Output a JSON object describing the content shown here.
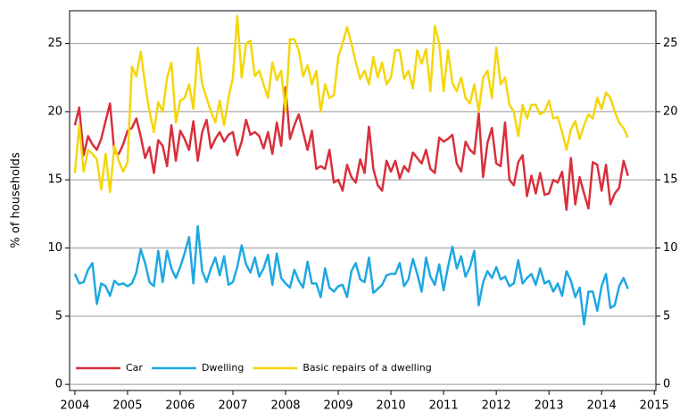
{
  "chart_data": {
    "type": "line",
    "y_label": "% of households",
    "xlim": [
      2003.9,
      2015.03
    ],
    "xticks": [
      2004,
      2005,
      2006,
      2007,
      2008,
      2009,
      2010,
      2011,
      2012,
      2013,
      2014,
      2015
    ],
    "ylim": [
      -0.45,
      27.4
    ],
    "yticks": [
      0,
      5,
      10,
      15,
      20,
      25
    ],
    "grid": true,
    "legend": "lower left",
    "x": [
      2004,
      2004.083,
      2004.167,
      2004.25,
      2004.333,
      2004.417,
      2004.5,
      2004.583,
      2004.667,
      2004.75,
      2004.833,
      2004.917,
      2005,
      2005.083,
      2005.167,
      2005.25,
      2005.333,
      2005.417,
      2005.5,
      2005.583,
      2005.667,
      2005.75,
      2005.833,
      2005.917,
      2006,
      2006.083,
      2006.167,
      2006.25,
      2006.333,
      2006.417,
      2006.5,
      2006.583,
      2006.667,
      2006.75,
      2006.833,
      2006.917,
      2007,
      2007.083,
      2007.167,
      2007.25,
      2007.333,
      2007.417,
      2007.5,
      2007.583,
      2007.667,
      2007.75,
      2007.833,
      2007.917,
      2008,
      2008.083,
      2008.167,
      2008.25,
      2008.333,
      2008.417,
      2008.5,
      2008.583,
      2008.667,
      2008.75,
      2008.833,
      2008.917,
      2009,
      2009.083,
      2009.167,
      2009.25,
      2009.333,
      2009.417,
      2009.5,
      2009.583,
      2009.667,
      2009.75,
      2009.833,
      2009.917,
      2010,
      2010.083,
      2010.167,
      2010.25,
      2010.333,
      2010.417,
      2010.5,
      2010.583,
      2010.667,
      2010.75,
      2010.833,
      2010.917,
      2011,
      2011.083,
      2011.167,
      2011.25,
      2011.333,
      2011.417,
      2011.5,
      2011.583,
      2011.667,
      2011.75,
      2011.833,
      2011.917,
      2012,
      2012.083,
      2012.167,
      2012.25,
      2012.333,
      2012.417,
      2012.5,
      2012.583,
      2012.667,
      2012.75,
      2012.833,
      2012.917,
      2013,
      2013.083,
      2013.167,
      2013.25,
      2013.333,
      2013.417,
      2013.5,
      2013.583,
      2013.667,
      2013.75,
      2013.833,
      2013.917,
      2014,
      2014.083,
      2014.167,
      2014.25,
      2014.333,
      2014.417,
      2014.5
    ],
    "series": [
      {
        "name": "Car",
        "color": "#d8303c",
        "values": [
          19.0,
          20.3,
          16.8,
          18.2,
          17.6,
          17.2,
          18.0,
          19.3,
          20.6,
          17.0,
          16.9,
          17.6,
          18.6,
          18.8,
          19.5,
          18.2,
          16.6,
          17.4,
          15.5,
          17.9,
          17.5,
          16.0,
          19.0,
          16.4,
          18.6,
          18.0,
          17.2,
          19.3,
          16.4,
          18.5,
          19.4,
          17.3,
          18.0,
          18.5,
          17.8,
          18.3,
          18.5,
          16.8,
          17.8,
          19.4,
          18.3,
          18.5,
          18.2,
          17.3,
          18.5,
          16.9,
          19.2,
          17.5,
          21.8,
          18.0,
          19.0,
          19.8,
          18.5,
          17.2,
          18.6,
          15.8,
          16.0,
          15.8,
          17.2,
          14.8,
          15.0,
          14.2,
          16.1,
          15.2,
          14.8,
          16.5,
          15.5,
          18.9,
          15.8,
          14.6,
          14.2,
          16.4,
          15.6,
          16.4,
          15.1,
          16.0,
          15.6,
          17.0,
          16.6,
          16.2,
          17.2,
          15.8,
          15.5,
          18.1,
          17.8,
          18.0,
          18.3,
          16.2,
          15.6,
          17.8,
          17.2,
          16.9,
          19.9,
          15.2,
          17.7,
          18.8,
          16.2,
          16.0,
          19.2,
          15.0,
          14.6,
          16.3,
          16.8,
          13.8,
          15.3,
          14.0,
          15.5,
          13.9,
          14.0,
          15.0,
          14.8,
          15.6,
          12.8,
          16.6,
          13.2,
          15.2,
          14.0,
          12.9,
          16.3,
          16.1,
          14.2,
          16.1,
          13.2,
          14.0,
          14.4,
          16.4,
          15.3
        ]
      },
      {
        "name": "Dwelling",
        "color": "#1ea8e2",
        "values": [
          8.1,
          7.4,
          7.5,
          8.4,
          8.9,
          5.9,
          7.4,
          7.2,
          6.5,
          7.6,
          7.3,
          7.4,
          7.2,
          7.4,
          8.2,
          9.9,
          8.9,
          7.5,
          7.2,
          9.8,
          7.5,
          9.8,
          8.5,
          7.8,
          8.6,
          9.6,
          10.8,
          7.4,
          11.6,
          8.3,
          7.5,
          8.5,
          9.3,
          8.0,
          9.4,
          7.3,
          7.5,
          8.6,
          10.2,
          8.8,
          8.2,
          9.3,
          7.9,
          8.5,
          9.5,
          7.3,
          9.6,
          7.8,
          7.4,
          7.1,
          8.4,
          7.6,
          7.1,
          9.0,
          7.4,
          7.4,
          6.4,
          8.5,
          7.1,
          6.8,
          7.2,
          7.3,
          6.4,
          8.3,
          8.9,
          7.7,
          7.5,
          9.3,
          6.7,
          7.0,
          7.3,
          8.0,
          8.1,
          8.1,
          8.9,
          7.2,
          7.7,
          9.2,
          8.1,
          6.8,
          9.3,
          7.9,
          7.3,
          8.8,
          6.9,
          8.6,
          10.1,
          8.5,
          9.4,
          7.9,
          8.6,
          9.8,
          5.8,
          7.5,
          8.3,
          7.8,
          8.6,
          7.7,
          7.9,
          7.2,
          7.4,
          9.1,
          7.4,
          7.8,
          8.1,
          7.3,
          8.5,
          7.4,
          7.6,
          6.8,
          7.4,
          6.5,
          8.3,
          7.6,
          6.4,
          7.1,
          4.4,
          6.8,
          6.8,
          5.4,
          7.2,
          8.1,
          5.6,
          5.8,
          7.2,
          7.8,
          7.0
        ]
      },
      {
        "name": "Basic repairs of a dwelling",
        "color": "#f5d60c",
        "values": [
          15.5,
          19.0,
          15.6,
          17.2,
          16.9,
          16.5,
          14.3,
          16.9,
          14.1,
          17.5,
          16.4,
          15.6,
          16.3,
          23.3,
          22.6,
          24.4,
          22.0,
          20.0,
          18.5,
          20.7,
          20.0,
          22.5,
          23.6,
          19.2,
          20.8,
          21.0,
          22.0,
          20.2,
          24.7,
          22.0,
          21.0,
          20.0,
          19.2,
          20.8,
          19.0,
          21.0,
          22.5,
          27.0,
          22.5,
          25.0,
          25.2,
          22.6,
          23.0,
          22.0,
          21.0,
          23.6,
          22.3,
          23.0,
          20.0,
          25.3,
          25.3,
          24.5,
          22.6,
          23.4,
          22.0,
          23.0,
          20.0,
          22.0,
          21.0,
          21.2,
          24.0,
          25.0,
          26.2,
          25.0,
          23.6,
          22.4,
          23.0,
          22.0,
          24.0,
          22.5,
          23.6,
          22.0,
          22.5,
          24.5,
          24.5,
          22.4,
          23.0,
          21.7,
          24.5,
          23.5,
          24.6,
          21.5,
          26.3,
          25.0,
          21.5,
          24.5,
          22.1,
          21.5,
          22.5,
          21.0,
          20.6,
          22.0,
          20.0,
          22.5,
          23.0,
          21.0,
          24.7,
          22.0,
          22.5,
          20.5,
          20.0,
          18.2,
          20.5,
          19.5,
          20.5,
          20.5,
          19.8,
          20.0,
          20.8,
          19.5,
          19.6,
          18.5,
          17.2,
          18.7,
          19.3,
          18.0,
          19.0,
          19.8,
          19.5,
          21.0,
          20.2,
          21.4,
          21.0,
          20.0,
          19.2,
          18.8,
          18.1
        ]
      }
    ]
  }
}
